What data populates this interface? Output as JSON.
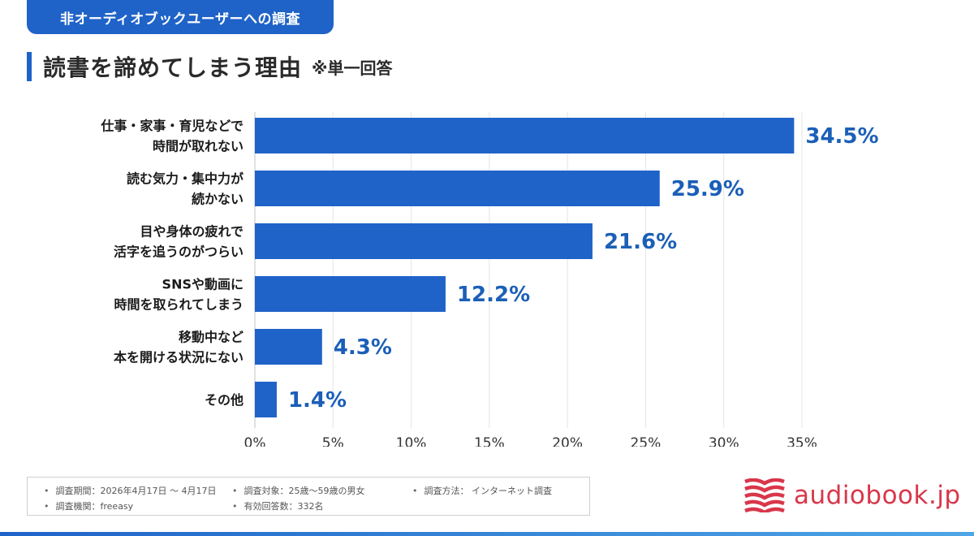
{
  "header": {
    "tag": "非オーディオブックユーザーへの調査",
    "title": "読書を諦めてしまう理由",
    "title_note": "※単一回答"
  },
  "chart_data": {
    "type": "bar",
    "orientation": "horizontal",
    "categories": [
      [
        "仕事・家事・育児などで",
        "時間が取れない"
      ],
      [
        "読む気力・集中力が",
        "続かない"
      ],
      [
        "目や身体の疲れで",
        "活字を追うのがつらい"
      ],
      [
        "SNSや動画に",
        "時間を取られてしまう"
      ],
      [
        "移動中など",
        "本を開ける状況にない"
      ],
      [
        "その他"
      ]
    ],
    "values": [
      34.5,
      25.9,
      21.6,
      12.2,
      4.3,
      1.4
    ],
    "value_labels": [
      "34.5%",
      "25.9%",
      "21.6%",
      "12.2%",
      "4.3%",
      "1.4%"
    ],
    "xlim": [
      0,
      35
    ],
    "xticks": [
      "0%",
      "5%",
      "10%",
      "15%",
      "20%",
      "25%",
      "30%",
      "35%"
    ],
    "grid": true,
    "bar_color": "#1f63c8",
    "label_color": "#1b5fb8"
  },
  "footer": {
    "period": "調査期間：2026年4月17日 〜 4月17日",
    "target": "調査対象：25歳〜59歳の男女",
    "method": "調査方法： インターネット調査",
    "org": "調査機関：freeasy",
    "responses": "有効回答数：332名"
  },
  "logo": {
    "text": "audiobook.jp",
    "color": "#d9364a",
    "icon": "book-pages-icon"
  }
}
